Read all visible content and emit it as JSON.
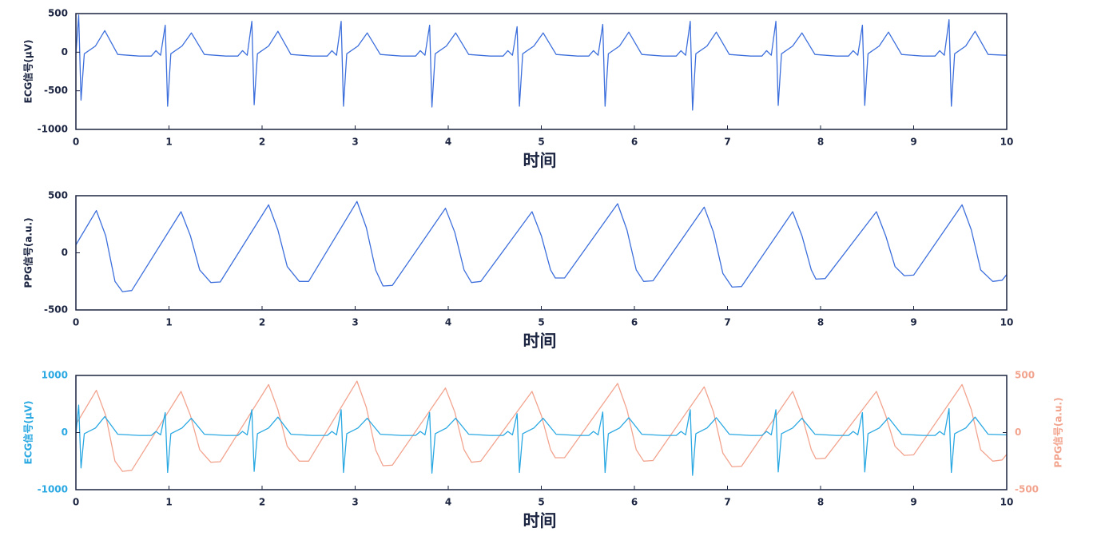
{
  "chart_data": [
    {
      "type": "line",
      "xlabel": "时间",
      "ylabel": "ECG信号(μV)",
      "xlim": [
        0,
        10
      ],
      "xticks": [
        0,
        1,
        2,
        3,
        4,
        5,
        6,
        7,
        8,
        9,
        10
      ],
      "ylim": [
        -1000,
        500
      ],
      "yticks": [
        -1000,
        -500,
        0,
        500
      ],
      "x": [
        0,
        0.03,
        0.055,
        0.09,
        0.21,
        0.31,
        0.45,
        0.68,
        0.81,
        0.86,
        0.91,
        0.96,
        0.985,
        1.02,
        1.14,
        1.24,
        1.38,
        1.61,
        1.74,
        1.79,
        1.84,
        1.89,
        1.915,
        1.95,
        2.07,
        2.17,
        2.31,
        2.54,
        2.7,
        2.75,
        2.8,
        2.85,
        2.875,
        2.91,
        3.03,
        3.13,
        3.27,
        3.5,
        3.65,
        3.7,
        3.75,
        3.8,
        3.825,
        3.86,
        3.98,
        4.08,
        4.22,
        4.45,
        4.59,
        4.64,
        4.69,
        4.74,
        4.765,
        4.8,
        4.92,
        5.02,
        5.16,
        5.39,
        5.51,
        5.56,
        5.61,
        5.66,
        5.685,
        5.72,
        5.84,
        5.94,
        6.08,
        6.31,
        6.45,
        6.5,
        6.55,
        6.6,
        6.625,
        6.66,
        6.78,
        6.88,
        7.02,
        7.25,
        7.37,
        7.42,
        7.47,
        7.52,
        7.545,
        7.58,
        7.7,
        7.8,
        7.94,
        8.17,
        8.3,
        8.35,
        8.4,
        8.45,
        8.475,
        8.51,
        8.63,
        8.73,
        8.87,
        9.1,
        9.23,
        9.28,
        9.33,
        9.38,
        9.405,
        9.44,
        9.56,
        9.66,
        9.8,
        10.0
      ],
      "series": [
        {
          "color": "#3d6fdc",
          "values": [
            -20,
            480,
            -620,
            -20,
            80,
            280,
            -30,
            -50,
            -50,
            20,
            -40,
            350,
            -700,
            -20,
            80,
            250,
            -30,
            -50,
            -50,
            20,
            -40,
            400,
            -680,
            -20,
            80,
            270,
            -30,
            -50,
            -50,
            20,
            -40,
            400,
            -700,
            -20,
            80,
            250,
            -30,
            -50,
            -50,
            20,
            -40,
            350,
            -710,
            -20,
            80,
            250,
            -30,
            -50,
            -50,
            20,
            -40,
            330,
            -700,
            -20,
            80,
            250,
            -30,
            -50,
            -50,
            20,
            -40,
            360,
            -700,
            -20,
            80,
            260,
            -30,
            -50,
            -50,
            20,
            -40,
            400,
            -750,
            -20,
            80,
            260,
            -30,
            -50,
            -50,
            20,
            -40,
            400,
            -690,
            -20,
            80,
            250,
            -30,
            -50,
            -50,
            20,
            -40,
            350,
            -690,
            -20,
            80,
            260,
            -30,
            -50,
            -50,
            20,
            -40,
            420,
            -700,
            -20,
            80,
            270,
            -30,
            -40
          ]
        }
      ]
    },
    {
      "type": "line",
      "xlabel": "时间",
      "ylabel": "PPG信号(a.u.)",
      "xlim": [
        0,
        10
      ],
      "xticks": [
        0,
        1,
        2,
        3,
        4,
        5,
        6,
        7,
        8,
        9,
        10
      ],
      "ylim": [
        -500,
        500
      ],
      "yticks": [
        -500,
        0,
        500
      ],
      "x": [
        0,
        0.22,
        0.32,
        0.42,
        0.5,
        0.6,
        1.13,
        1.23,
        1.33,
        1.45,
        1.55,
        2.07,
        2.17,
        2.27,
        2.4,
        2.5,
        3.02,
        3.12,
        3.22,
        3.3,
        3.4,
        3.97,
        4.07,
        4.17,
        4.25,
        4.35,
        4.9,
        5.0,
        5.1,
        5.15,
        5.25,
        5.82,
        5.92,
        6.02,
        6.1,
        6.2,
        6.75,
        6.85,
        6.95,
        7.05,
        7.15,
        7.7,
        7.8,
        7.9,
        7.95,
        8.05,
        8.6,
        8.7,
        8.8,
        8.9,
        9.0,
        9.52,
        9.62,
        9.72,
        9.85,
        9.95,
        10
      ],
      "series": [
        {
          "color": "#3d6fdc",
          "values": [
            70,
            370,
            150,
            -250,
            -340,
            -330,
            360,
            150,
            -150,
            -260,
            -255,
            420,
            200,
            -120,
            -250,
            -250,
            450,
            220,
            -150,
            -290,
            -285,
            390,
            180,
            -150,
            -260,
            -250,
            360,
            150,
            -150,
            -220,
            -220,
            430,
            200,
            -150,
            -250,
            -245,
            400,
            180,
            -180,
            -300,
            -295,
            360,
            150,
            -150,
            -230,
            -225,
            360,
            150,
            -120,
            -200,
            -195,
            420,
            200,
            -150,
            -250,
            -240,
            -190
          ]
        }
      ]
    },
    {
      "type": "line",
      "xlabel": "时间",
      "ylabel": "ECG信号(μV)",
      "y2label": "PPG信号(a.u.)",
      "xlim": [
        0,
        10
      ],
      "xticks": [
        0,
        1,
        2,
        3,
        4,
        5,
        6,
        7,
        8,
        9,
        10
      ],
      "ylim": [
        -1000,
        1000
      ],
      "yticks": [
        -1000,
        0,
        1000
      ],
      "y2lim": [
        -500,
        500
      ],
      "y2ticks": [
        -500,
        0,
        500
      ],
      "series": [
        {
          "color": "#f2a48f",
          "axis": "y2",
          "x": [
            0,
            0.22,
            0.32,
            0.42,
            0.5,
            0.6,
            1.13,
            1.23,
            1.33,
            1.45,
            1.55,
            2.07,
            2.17,
            2.27,
            2.4,
            2.5,
            3.02,
            3.12,
            3.22,
            3.3,
            3.4,
            3.97,
            4.07,
            4.17,
            4.25,
            4.35,
            4.9,
            5.0,
            5.1,
            5.15,
            5.25,
            5.82,
            5.92,
            6.02,
            6.1,
            6.2,
            6.75,
            6.85,
            6.95,
            7.05,
            7.15,
            7.7,
            7.8,
            7.9,
            7.95,
            8.05,
            8.6,
            8.7,
            8.8,
            8.9,
            9.0,
            9.52,
            9.62,
            9.72,
            9.85,
            9.95,
            10
          ],
          "values": [
            70,
            370,
            150,
            -250,
            -340,
            -330,
            360,
            150,
            -150,
            -260,
            -255,
            420,
            200,
            -120,
            -250,
            -250,
            450,
            220,
            -150,
            -290,
            -285,
            390,
            180,
            -150,
            -260,
            -250,
            360,
            150,
            -150,
            -220,
            -220,
            430,
            200,
            -150,
            -250,
            -245,
            400,
            180,
            -180,
            -300,
            -295,
            360,
            150,
            -150,
            -230,
            -225,
            360,
            150,
            -120,
            -200,
            -195,
            420,
            200,
            -150,
            -250,
            -240,
            -190
          ]
        },
        {
          "color": "#2aa8e2",
          "x": [
            0,
            0.03,
            0.055,
            0.09,
            0.21,
            0.31,
            0.45,
            0.68,
            0.81,
            0.86,
            0.91,
            0.96,
            0.985,
            1.02,
            1.14,
            1.24,
            1.38,
            1.61,
            1.74,
            1.79,
            1.84,
            1.89,
            1.915,
            1.95,
            2.07,
            2.17,
            2.31,
            2.54,
            2.7,
            2.75,
            2.8,
            2.85,
            2.875,
            2.91,
            3.03,
            3.13,
            3.27,
            3.5,
            3.65,
            3.7,
            3.75,
            3.8,
            3.825,
            3.86,
            3.98,
            4.08,
            4.22,
            4.45,
            4.59,
            4.64,
            4.69,
            4.74,
            4.765,
            4.8,
            4.92,
            5.02,
            5.16,
            5.39,
            5.51,
            5.56,
            5.61,
            5.66,
            5.685,
            5.72,
            5.84,
            5.94,
            6.08,
            6.31,
            6.45,
            6.5,
            6.55,
            6.6,
            6.625,
            6.66,
            6.78,
            6.88,
            7.02,
            7.25,
            7.37,
            7.42,
            7.47,
            7.52,
            7.545,
            7.58,
            7.7,
            7.8,
            7.94,
            8.17,
            8.3,
            8.35,
            8.4,
            8.45,
            8.475,
            8.51,
            8.63,
            8.73,
            8.87,
            9.1,
            9.23,
            9.28,
            9.33,
            9.38,
            9.405,
            9.44,
            9.56,
            9.66,
            9.8,
            10.0
          ],
          "values": [
            -20,
            480,
            -620,
            -20,
            80,
            280,
            -30,
            -50,
            -50,
            20,
            -40,
            350,
            -700,
            -20,
            80,
            250,
            -30,
            -50,
            -50,
            20,
            -40,
            400,
            -680,
            -20,
            80,
            270,
            -30,
            -50,
            -50,
            20,
            -40,
            400,
            -700,
            -20,
            80,
            250,
            -30,
            -50,
            -50,
            20,
            -40,
            350,
            -710,
            -20,
            80,
            250,
            -30,
            -50,
            -50,
            20,
            -40,
            330,
            -700,
            -20,
            80,
            250,
            -30,
            -50,
            -50,
            20,
            -40,
            360,
            -700,
            -20,
            80,
            260,
            -30,
            -50,
            -50,
            20,
            -40,
            400,
            -750,
            -20,
            80,
            260,
            -30,
            -50,
            -50,
            20,
            -40,
            400,
            -690,
            -20,
            80,
            250,
            -30,
            -50,
            -50,
            20,
            -40,
            350,
            -690,
            -20,
            80,
            260,
            -30,
            -50,
            -50,
            20,
            -40,
            420,
            -700,
            -20,
            80,
            270,
            -30,
            -40
          ]
        }
      ]
    }
  ]
}
